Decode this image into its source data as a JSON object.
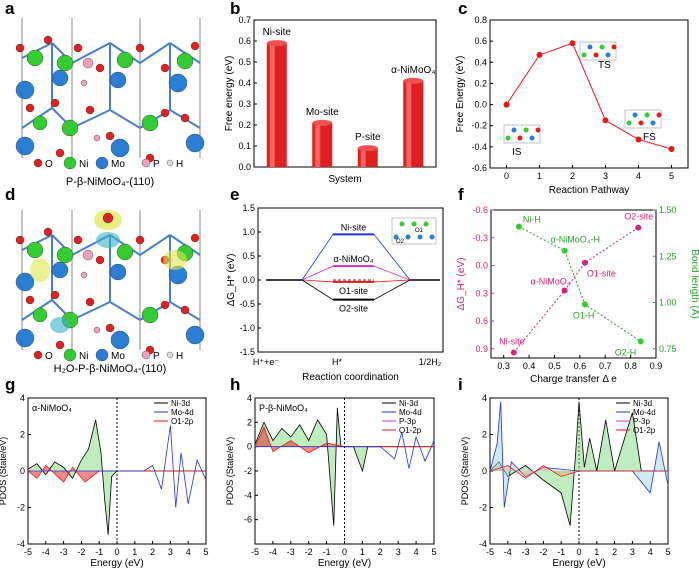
{
  "panels": {
    "a": {
      "letter": "a",
      "caption": "P-β-NiMoO₄-(110)",
      "legend": [
        "O",
        "Ni",
        "Mo",
        "P",
        "H"
      ]
    },
    "b": {
      "letter": "b"
    },
    "c": {
      "letter": "c"
    },
    "d": {
      "letter": "d",
      "caption": "H₂O-P-β-NiMoO₄-(110)",
      "legend": [
        "O",
        "Ni",
        "Mo",
        "P",
        "H"
      ]
    },
    "e": {
      "letter": "e"
    },
    "f": {
      "letter": "f"
    },
    "g": {
      "letter": "g"
    },
    "h": {
      "letter": "h"
    },
    "i": {
      "letter": "i"
    }
  },
  "colors": {
    "O": "#e02020",
    "Ni": "#33cc33",
    "Mo": "#2a7fd4",
    "P": "#f2a0c0",
    "H": "#dddddd",
    "red": "#e31a1c",
    "blue": "#2233cc",
    "magenta": "#cc33cc",
    "green": "#33cc33"
  },
  "chart_data": [
    {
      "id": "b",
      "type": "bar",
      "title": "",
      "xlabel": "System",
      "ylabel": "Free energy (eV)",
      "categories": [
        "Ni-site",
        "Mo-site",
        "P-site",
        "α-NiMoO₄"
      ],
      "values": [
        0.59,
        0.21,
        0.09,
        0.41
      ],
      "ylim": [
        0,
        0.7
      ],
      "yticks": [
        "0.0",
        "0.1",
        "0.2",
        "0.3",
        "0.4",
        "0.5",
        "0.6",
        "0.7"
      ]
    },
    {
      "id": "c",
      "type": "line",
      "xlabel": "Reaction Pathway",
      "ylabel": "Free Energy (eV)",
      "x": [
        0,
        1,
        2,
        3,
        4,
        5
      ],
      "y": [
        0,
        0.47,
        0.58,
        -0.15,
        -0.33,
        -0.42
      ],
      "xlim": [
        -0.5,
        5.5
      ],
      "ylim": [
        -0.6,
        0.8
      ],
      "xticks": [
        "0",
        "1",
        "2",
        "3",
        "4",
        "5"
      ],
      "yticks": [
        "-0.6",
        "-0.4",
        "-0.2",
        "0.0",
        "0.2",
        "0.4",
        "0.6",
        "0.8"
      ],
      "annotations": [
        "TS",
        "IS",
        "FS"
      ]
    },
    {
      "id": "e",
      "type": "line",
      "xlabel": "Reaction coordination",
      "ylabel": "ΔG_H* (eV)",
      "xticklabels": [
        "H⁺+e⁻",
        "H*",
        "1/2H₂"
      ],
      "ylim": [
        -1.5,
        1.5
      ],
      "yticks": [
        "-1.5",
        "-1.0",
        "-0.5",
        "0.0",
        "0.5",
        "1.0",
        "1.5"
      ],
      "series": [
        {
          "name": "Ni-site",
          "value": 0.95
        },
        {
          "name": "α-NiMoO₄",
          "value": 0.29
        },
        {
          "name": "O1-site",
          "value": -0.04
        },
        {
          "name": "O2-site",
          "value": -0.41
        }
      ],
      "inset_labels": [
        "O2",
        "O1"
      ]
    },
    {
      "id": "f",
      "type": "scatter",
      "xlabel": "Charge transfer Δ e",
      "ylabel_left": "ΔG_H* (eV)",
      "ylabel_right": "Bond length (Å)",
      "xlim": [
        0.25,
        0.9
      ],
      "ylim_left": [
        1.0,
        -0.6
      ],
      "ylim_right": [
        0.7,
        1.5
      ],
      "xticks": [
        "0.3",
        "0.4",
        "0.5",
        "0.6",
        "0.7",
        "0.8",
        "0.9"
      ],
      "yticks_left": [
        "-0.6",
        "-0.3",
        "0.0",
        "0.3",
        "0.6",
        "0.9"
      ],
      "yticks_right": [
        "0.75",
        "1.00",
        "1.25",
        "1.50"
      ],
      "series": [
        {
          "name": "ΔG_H*",
          "axis": "left",
          "points": [
            {
              "x": 0.34,
              "y": 0.94,
              "label": "Ni-site"
            },
            {
              "x": 0.54,
              "y": 0.27,
              "label": "α-NiMoO₄"
            },
            {
              "x": 0.62,
              "y": -0.03,
              "label": "O1-site"
            },
            {
              "x": 0.83,
              "y": -0.41,
              "label": "O2-site"
            }
          ]
        },
        {
          "name": "Bond length",
          "axis": "right",
          "points": [
            {
              "x": 0.36,
              "y": 1.41,
              "label": "Ni-H"
            },
            {
              "x": 0.54,
              "y": 1.28,
              "label": "α-NiMoO₄-H"
            },
            {
              "x": 0.62,
              "y": 0.99,
              "label": "O1-H"
            },
            {
              "x": 0.84,
              "y": 0.79,
              "label": "O2-H"
            }
          ]
        }
      ]
    },
    {
      "id": "g",
      "type": "area",
      "title": "α-NiMoO₄",
      "xlabel": "Energy (eV)",
      "ylabel": "PDOS (State/eV)",
      "xlim": [
        -5,
        5
      ],
      "ylim": [
        -4,
        4
      ],
      "xticks": [
        "-5",
        "-4",
        "-3",
        "-2",
        "-1",
        "0",
        "1",
        "2",
        "3",
        "4",
        "5"
      ],
      "yticks": [
        "-4",
        "-2",
        "0",
        "2",
        "4"
      ],
      "legend": [
        "Ni-3d",
        "Mo-4d",
        "O1-2p"
      ]
    },
    {
      "id": "h",
      "type": "area",
      "title": "P-β-NiMoO₄",
      "xlabel": "Energy (eV)",
      "ylabel": "PDOS (State/eV)",
      "xlim": [
        -5,
        5
      ],
      "ylim": [
        -8,
        4
      ],
      "xticks": [
        "-5",
        "-4",
        "-3",
        "-2",
        "-1",
        "0",
        "1",
        "2",
        "3",
        "4",
        "5"
      ],
      "yticks": [
        "-6",
        "-4",
        "-2",
        "0",
        "2",
        "4"
      ],
      "legend": [
        "Ni-3d",
        "Mo-4d",
        "P-3p",
        "O1-2p"
      ]
    },
    {
      "id": "i",
      "type": "area",
      "title": "",
      "xlabel": "Energy (eV)",
      "ylabel": "PDOS (State/eV)",
      "xlim": [
        -5,
        5
      ],
      "ylim": [
        -4,
        4
      ],
      "xticks": [
        "-5",
        "-4",
        "-3",
        "-2",
        "-1",
        "0",
        "1",
        "2",
        "3",
        "4",
        "5"
      ],
      "yticks": [
        "-4",
        "-2",
        "0",
        "2",
        "4"
      ],
      "legend": [
        "Ni-3d",
        "Mo-4d",
        "P-3p",
        "O1-2p"
      ]
    }
  ]
}
